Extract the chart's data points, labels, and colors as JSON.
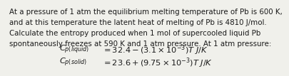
{
  "background_color": "#f0f0eb",
  "text_color": "#1a1a1a",
  "paragraph_lines": [
    "At a pressure of 1 atm the equilibrium melting temperature of Pb is 600 K,",
    "and at this temperature the latent heat of melting of Pb is 4810 J/mol.",
    "Calculate the entropy produced when 1 mol of supercooled liquid Pb",
    "spontaneously freezes at 590 K and 1 atm pressure. At 1 atm pressure:"
  ],
  "eq1_italic": "$C_{p(liquid)}$",
  "eq1_rest": "$= 32.4 - (3.1 \\times 10^{-3})T$ $J/K$",
  "eq2_italic": "$C_{p(solid)}$",
  "eq2_rest": "$= 23.6 + (9.75 \\times 10^{-3})T$ $J/K$",
  "font_size_para": 7.4,
  "font_size_eq": 8.2
}
